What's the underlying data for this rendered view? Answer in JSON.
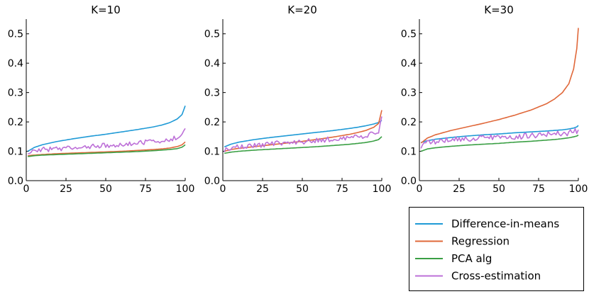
{
  "chart_data": {
    "type": "line",
    "grid": false,
    "legend_position": "bottom-right",
    "shared_legend": [
      {
        "name": "Difference-in-means",
        "color": "#1f9ad6"
      },
      {
        "name": "Regression",
        "color": "#e0683a"
      },
      {
        "name": "PCA alg",
        "color": "#3a9f44"
      },
      {
        "name": "Cross-estimation",
        "color": "#bd70d8"
      }
    ],
    "panels": [
      {
        "title": "K=10",
        "xlim": [
          0,
          100
        ],
        "ylim": [
          0,
          0.55
        ],
        "xticks": [
          "0",
          "25",
          "50",
          "75",
          "100"
        ],
        "yticks": [
          "0.0",
          "0.1",
          "0.2",
          "0.3",
          "0.4",
          "0.5"
        ],
        "xtick_values": [
          0,
          25,
          50,
          75,
          100
        ],
        "ytick_values": [
          0,
          0.1,
          0.2,
          0.3,
          0.4,
          0.5
        ],
        "x": [
          1,
          5,
          10,
          20,
          30,
          40,
          50,
          60,
          70,
          80,
          85,
          90,
          95,
          98,
          100
        ],
        "series": [
          {
            "name": "Difference-in-means",
            "values": [
              0.1,
              0.113,
              0.122,
              0.134,
              0.143,
              0.151,
              0.158,
              0.166,
              0.174,
              0.183,
              0.189,
              0.197,
              0.21,
              0.225,
              0.255
            ]
          },
          {
            "name": "Regression",
            "values": [
              0.085,
              0.087,
              0.089,
              0.092,
              0.094,
              0.096,
              0.098,
              0.1,
              0.103,
              0.106,
              0.108,
              0.111,
              0.116,
              0.122,
              0.132
            ]
          },
          {
            "name": "PCA alg",
            "values": [
              0.082,
              0.085,
              0.087,
              0.089,
              0.091,
              0.093,
              0.095,
              0.097,
              0.099,
              0.102,
              0.104,
              0.106,
              0.109,
              0.114,
              0.122
            ]
          },
          {
            "name": "Cross-estimation",
            "values": [
              0.098,
              0.103,
              0.106,
              0.108,
              0.112,
              0.116,
              0.12,
              0.124,
              0.128,
              0.133,
              0.137,
              0.141,
              0.147,
              0.155,
              0.175
            ],
            "noise": 0.008
          }
        ]
      },
      {
        "title": "K=20",
        "xlim": [
          0,
          100
        ],
        "ylim": [
          0,
          0.55
        ],
        "xticks": [
          "0",
          "25",
          "50",
          "75",
          "100"
        ],
        "yticks": [
          "0.0",
          "0.1",
          "0.2",
          "0.3",
          "0.4",
          "0.5"
        ],
        "xtick_values": [
          0,
          25,
          50,
          75,
          100
        ],
        "ytick_values": [
          0,
          0.1,
          0.2,
          0.3,
          0.4,
          0.5
        ],
        "x": [
          1,
          5,
          10,
          20,
          30,
          40,
          50,
          60,
          70,
          80,
          85,
          90,
          95,
          98,
          100
        ],
        "series": [
          {
            "name": "Difference-in-means",
            "values": [
              0.115,
              0.124,
              0.131,
              0.14,
              0.147,
              0.153,
              0.159,
              0.165,
              0.171,
              0.178,
              0.182,
              0.187,
              0.193,
              0.198,
              0.205
            ]
          },
          {
            "name": "Regression",
            "values": [
              0.1,
              0.106,
              0.11,
              0.116,
              0.122,
              0.128,
              0.134,
              0.141,
              0.149,
              0.158,
              0.164,
              0.171,
              0.182,
              0.195,
              0.24
            ]
          },
          {
            "name": "PCA alg",
            "values": [
              0.093,
              0.097,
              0.1,
              0.104,
              0.107,
              0.11,
              0.113,
              0.116,
              0.12,
              0.124,
              0.127,
              0.13,
              0.135,
              0.14,
              0.15
            ]
          },
          {
            "name": "Cross-estimation",
            "values": [
              0.105,
              0.11,
              0.114,
              0.12,
              0.125,
              0.129,
              0.133,
              0.137,
              0.141,
              0.146,
              0.15,
              0.154,
              0.159,
              0.165,
              0.21
            ],
            "noise": 0.009
          }
        ]
      },
      {
        "title": "K=30",
        "xlim": [
          0,
          100
        ],
        "ylim": [
          0,
          0.55
        ],
        "xticks": [
          "0",
          "25",
          "50",
          "75",
          "100"
        ],
        "yticks": [
          "0.0",
          "0.1",
          "0.2",
          "0.3",
          "0.4",
          "0.5"
        ],
        "xtick_values": [
          0,
          25,
          50,
          75,
          100
        ],
        "ytick_values": [
          0,
          0.1,
          0.2,
          0.3,
          0.4,
          0.5
        ],
        "x": [
          1,
          5,
          10,
          20,
          30,
          40,
          50,
          60,
          70,
          80,
          85,
          90,
          94,
          97,
          99,
          100
        ],
        "series": [
          {
            "name": "Difference-in-means",
            "values": [
              0.13,
              0.136,
              0.141,
              0.147,
              0.152,
              0.156,
              0.159,
              0.163,
              0.166,
              0.169,
              0.171,
              0.173,
              0.176,
              0.179,
              0.183,
              0.188
            ]
          },
          {
            "name": "Regression",
            "values": [
              0.128,
              0.145,
              0.156,
              0.171,
              0.183,
              0.195,
              0.208,
              0.223,
              0.24,
              0.262,
              0.278,
              0.3,
              0.33,
              0.38,
              0.45,
              0.52
            ]
          },
          {
            "name": "PCA alg",
            "values": [
              0.1,
              0.108,
              0.112,
              0.117,
              0.121,
              0.124,
              0.127,
              0.131,
              0.134,
              0.138,
              0.14,
              0.143,
              0.146,
              0.149,
              0.152,
              0.155
            ]
          },
          {
            "name": "Cross-estimation",
            "values": [
              0.118,
              0.128,
              0.134,
              0.139,
              0.142,
              0.145,
              0.147,
              0.15,
              0.153,
              0.156,
              0.158,
              0.16,
              0.163,
              0.166,
              0.17,
              0.178
            ],
            "noise": 0.01
          }
        ]
      }
    ]
  }
}
